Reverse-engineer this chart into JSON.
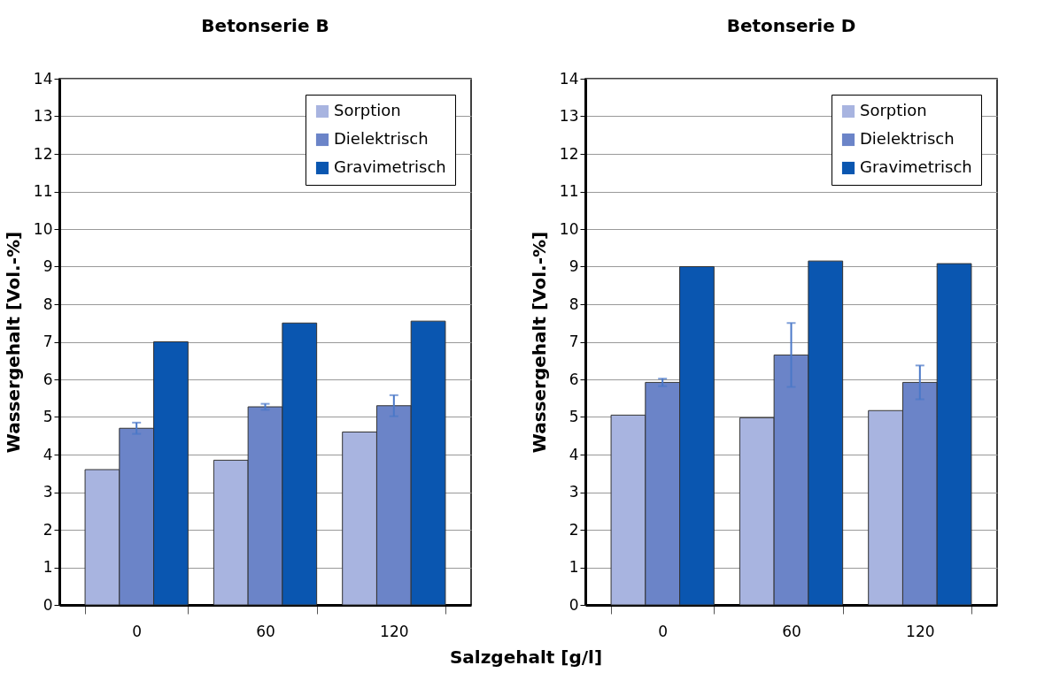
{
  "chart_data": [
    {
      "type": "bar",
      "title": "Betonserie B",
      "xlabel": "Salzgehalt [g/l]",
      "ylabel": "Wassergehalt [Vol.-%]",
      "categories": [
        "0",
        "60",
        "120"
      ],
      "series": [
        {
          "name": "Sorption",
          "color": "#a8b4e0",
          "values": [
            3.6,
            3.85,
            4.6
          ]
        },
        {
          "name": "Dielektrisch",
          "color": "#6b84c8",
          "values": [
            4.7,
            5.27,
            5.3
          ],
          "errors": [
            0.15,
            0.08,
            0.28
          ]
        },
        {
          "name": "Gravimetrisch",
          "color": "#0a56b0",
          "values": [
            7.0,
            7.5,
            7.55
          ]
        }
      ],
      "ylim": [
        0,
        14
      ],
      "yticks": [
        0,
        1,
        2,
        3,
        4,
        5,
        6,
        7,
        8,
        9,
        10,
        11,
        12,
        13,
        14
      ],
      "grid": "y",
      "legend": "top right"
    },
    {
      "type": "bar",
      "title": "Betonserie D",
      "ylabel": "Wassergehalt [Vol.-%]",
      "categories": [
        "0",
        "60",
        "120"
      ],
      "series": [
        {
          "name": "Sorption",
          "color": "#a8b4e0",
          "values": [
            5.05,
            4.98,
            5.17
          ]
        },
        {
          "name": "Dielektrisch",
          "color": "#6b84c8",
          "values": [
            5.92,
            6.65,
            5.92
          ],
          "errors": [
            0.1,
            0.85,
            0.45
          ]
        },
        {
          "name": "Gravimetrisch",
          "color": "#0a56b0",
          "values": [
            9.0,
            9.15,
            9.08
          ]
        }
      ],
      "ylim": [
        0,
        14
      ],
      "yticks": [
        0,
        1,
        2,
        3,
        4,
        5,
        6,
        7,
        8,
        9,
        10,
        11,
        12,
        13,
        14
      ],
      "grid": "y",
      "legend": "top right"
    }
  ]
}
